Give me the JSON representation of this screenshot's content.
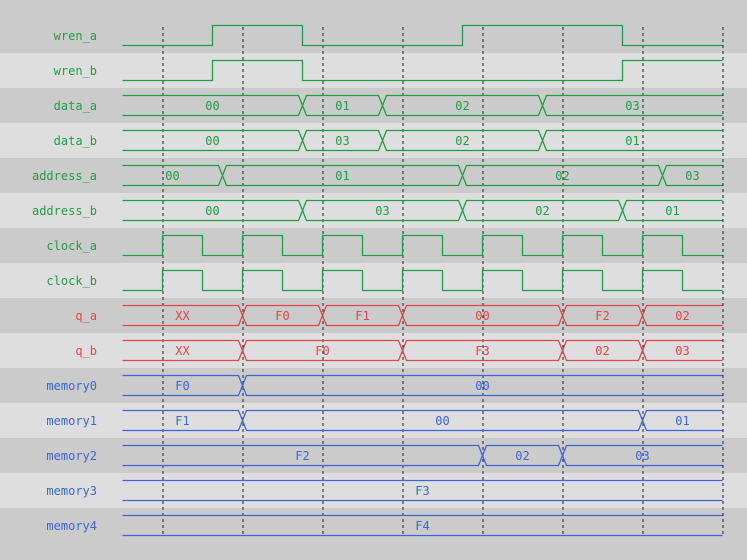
{
  "colors": {
    "bg_dark": "#cbcbcb",
    "bg_light": "#dedede",
    "green": "#1f9e45",
    "red": "#e0474a",
    "blue": "#3d66d6",
    "grid": "#222222"
  },
  "time": {
    "start": 0,
    "end": 15,
    "gridlines": [
      1,
      3,
      5,
      7,
      9,
      11,
      13,
      15
    ]
  },
  "signals": [
    {
      "name": "wren_a",
      "color": "green",
      "type": "bit",
      "init": 0,
      "edges": [
        2.25,
        4.5,
        8.5,
        12.5
      ]
    },
    {
      "name": "wren_b",
      "color": "green",
      "type": "bit",
      "init": 0,
      "edges": [
        2.25,
        4.5,
        12.5
      ]
    },
    {
      "name": "data_a",
      "color": "green",
      "type": "bus",
      "segments": [
        {
          "v": "00",
          "t": 0
        },
        {
          "v": "01",
          "t": 4.5
        },
        {
          "v": "02",
          "t": 6.5
        },
        {
          "v": "03",
          "t": 10.5
        }
      ]
    },
    {
      "name": "data_b",
      "color": "green",
      "type": "bus",
      "segments": [
        {
          "v": "00",
          "t": 0
        },
        {
          "v": "03",
          "t": 4.5
        },
        {
          "v": "02",
          "t": 6.5
        },
        {
          "v": "01",
          "t": 10.5
        }
      ]
    },
    {
      "name": "address_a",
      "color": "green",
      "type": "bus",
      "segments": [
        {
          "v": "00",
          "t": 0
        },
        {
          "v": "01",
          "t": 2.5
        },
        {
          "v": "02",
          "t": 8.5
        },
        {
          "v": "03",
          "t": 13.5
        }
      ]
    },
    {
      "name": "address_b",
      "color": "green",
      "type": "bus",
      "segments": [
        {
          "v": "00",
          "t": 0
        },
        {
          "v": "03",
          "t": 4.5
        },
        {
          "v": "02",
          "t": 8.5
        },
        {
          "v": "01",
          "t": 12.5
        }
      ]
    },
    {
      "name": "clock_a",
      "color": "green",
      "type": "clock",
      "init": 0,
      "first_rise": 1,
      "half_period": 1
    },
    {
      "name": "clock_b",
      "color": "green",
      "type": "clock",
      "init": 0,
      "first_rise": 1,
      "half_period": 1
    },
    {
      "name": "q_a",
      "color": "red",
      "type": "bus",
      "segments": [
        {
          "v": "XX",
          "t": 0
        },
        {
          "v": "F0",
          "t": 3
        },
        {
          "v": "F1",
          "t": 5
        },
        {
          "v": "00",
          "t": 7
        },
        {
          "v": "F2",
          "t": 11
        },
        {
          "v": "02",
          "t": 13
        }
      ]
    },
    {
      "name": "q_b",
      "color": "red",
      "type": "bus",
      "segments": [
        {
          "v": "XX",
          "t": 0
        },
        {
          "v": "F0",
          "t": 3
        },
        {
          "v": "F3",
          "t": 7
        },
        {
          "v": "02",
          "t": 11
        },
        {
          "v": "03",
          "t": 13
        }
      ]
    },
    {
      "name": "memory0",
      "color": "blue",
      "type": "bus",
      "segments": [
        {
          "v": "F0",
          "t": 0
        },
        {
          "v": "00",
          "t": 3
        }
      ]
    },
    {
      "name": "memory1",
      "color": "blue",
      "type": "bus",
      "segments": [
        {
          "v": "F1",
          "t": 0
        },
        {
          "v": "00",
          "t": 3
        },
        {
          "v": "01",
          "t": 13
        }
      ]
    },
    {
      "name": "memory2",
      "color": "blue",
      "type": "bus",
      "segments": [
        {
          "v": "F2",
          "t": 0
        },
        {
          "v": "02",
          "t": 9
        },
        {
          "v": "03",
          "t": 11
        }
      ]
    },
    {
      "name": "memory3",
      "color": "blue",
      "type": "bus",
      "segments": [
        {
          "v": "F3",
          "t": 0
        }
      ]
    },
    {
      "name": "memory4",
      "color": "blue",
      "type": "bus",
      "segments": [
        {
          "v": "F4",
          "t": 0
        }
      ]
    }
  ]
}
